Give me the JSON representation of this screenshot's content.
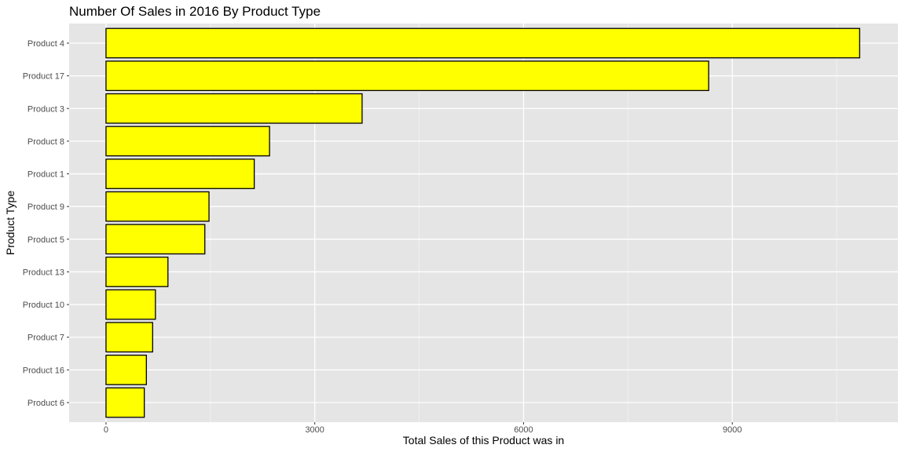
{
  "chart_data": {
    "type": "bar",
    "orientation": "horizontal",
    "title": "Number Of Sales in 2016 By Product Type",
    "xlabel": "Total Sales of this Product was in",
    "ylabel": "Product Type",
    "categories": [
      "Product 4",
      "Product 17",
      "Product 3",
      "Product 8",
      "Product 1",
      "Product 9",
      "Product 5",
      "Product 13",
      "Product 10",
      "Product 7",
      "Product 16",
      "Product 6"
    ],
    "values": [
      10830,
      8660,
      3680,
      2350,
      2130,
      1480,
      1420,
      890,
      710,
      670,
      580,
      550
    ],
    "xlim": [
      -530,
      11380
    ],
    "xticks": [
      0,
      3000,
      6000,
      9000
    ],
    "xtick_labels": [
      "0",
      "3000",
      "6000",
      "9000"
    ],
    "grid": true,
    "legend": "none",
    "colors": {
      "bar_fill": "#ffff00",
      "bar_stroke": "#000000",
      "panel_background": "#e5e5e5",
      "grid_major": "#ffffff",
      "grid_minor": "#f2f2f2"
    }
  }
}
